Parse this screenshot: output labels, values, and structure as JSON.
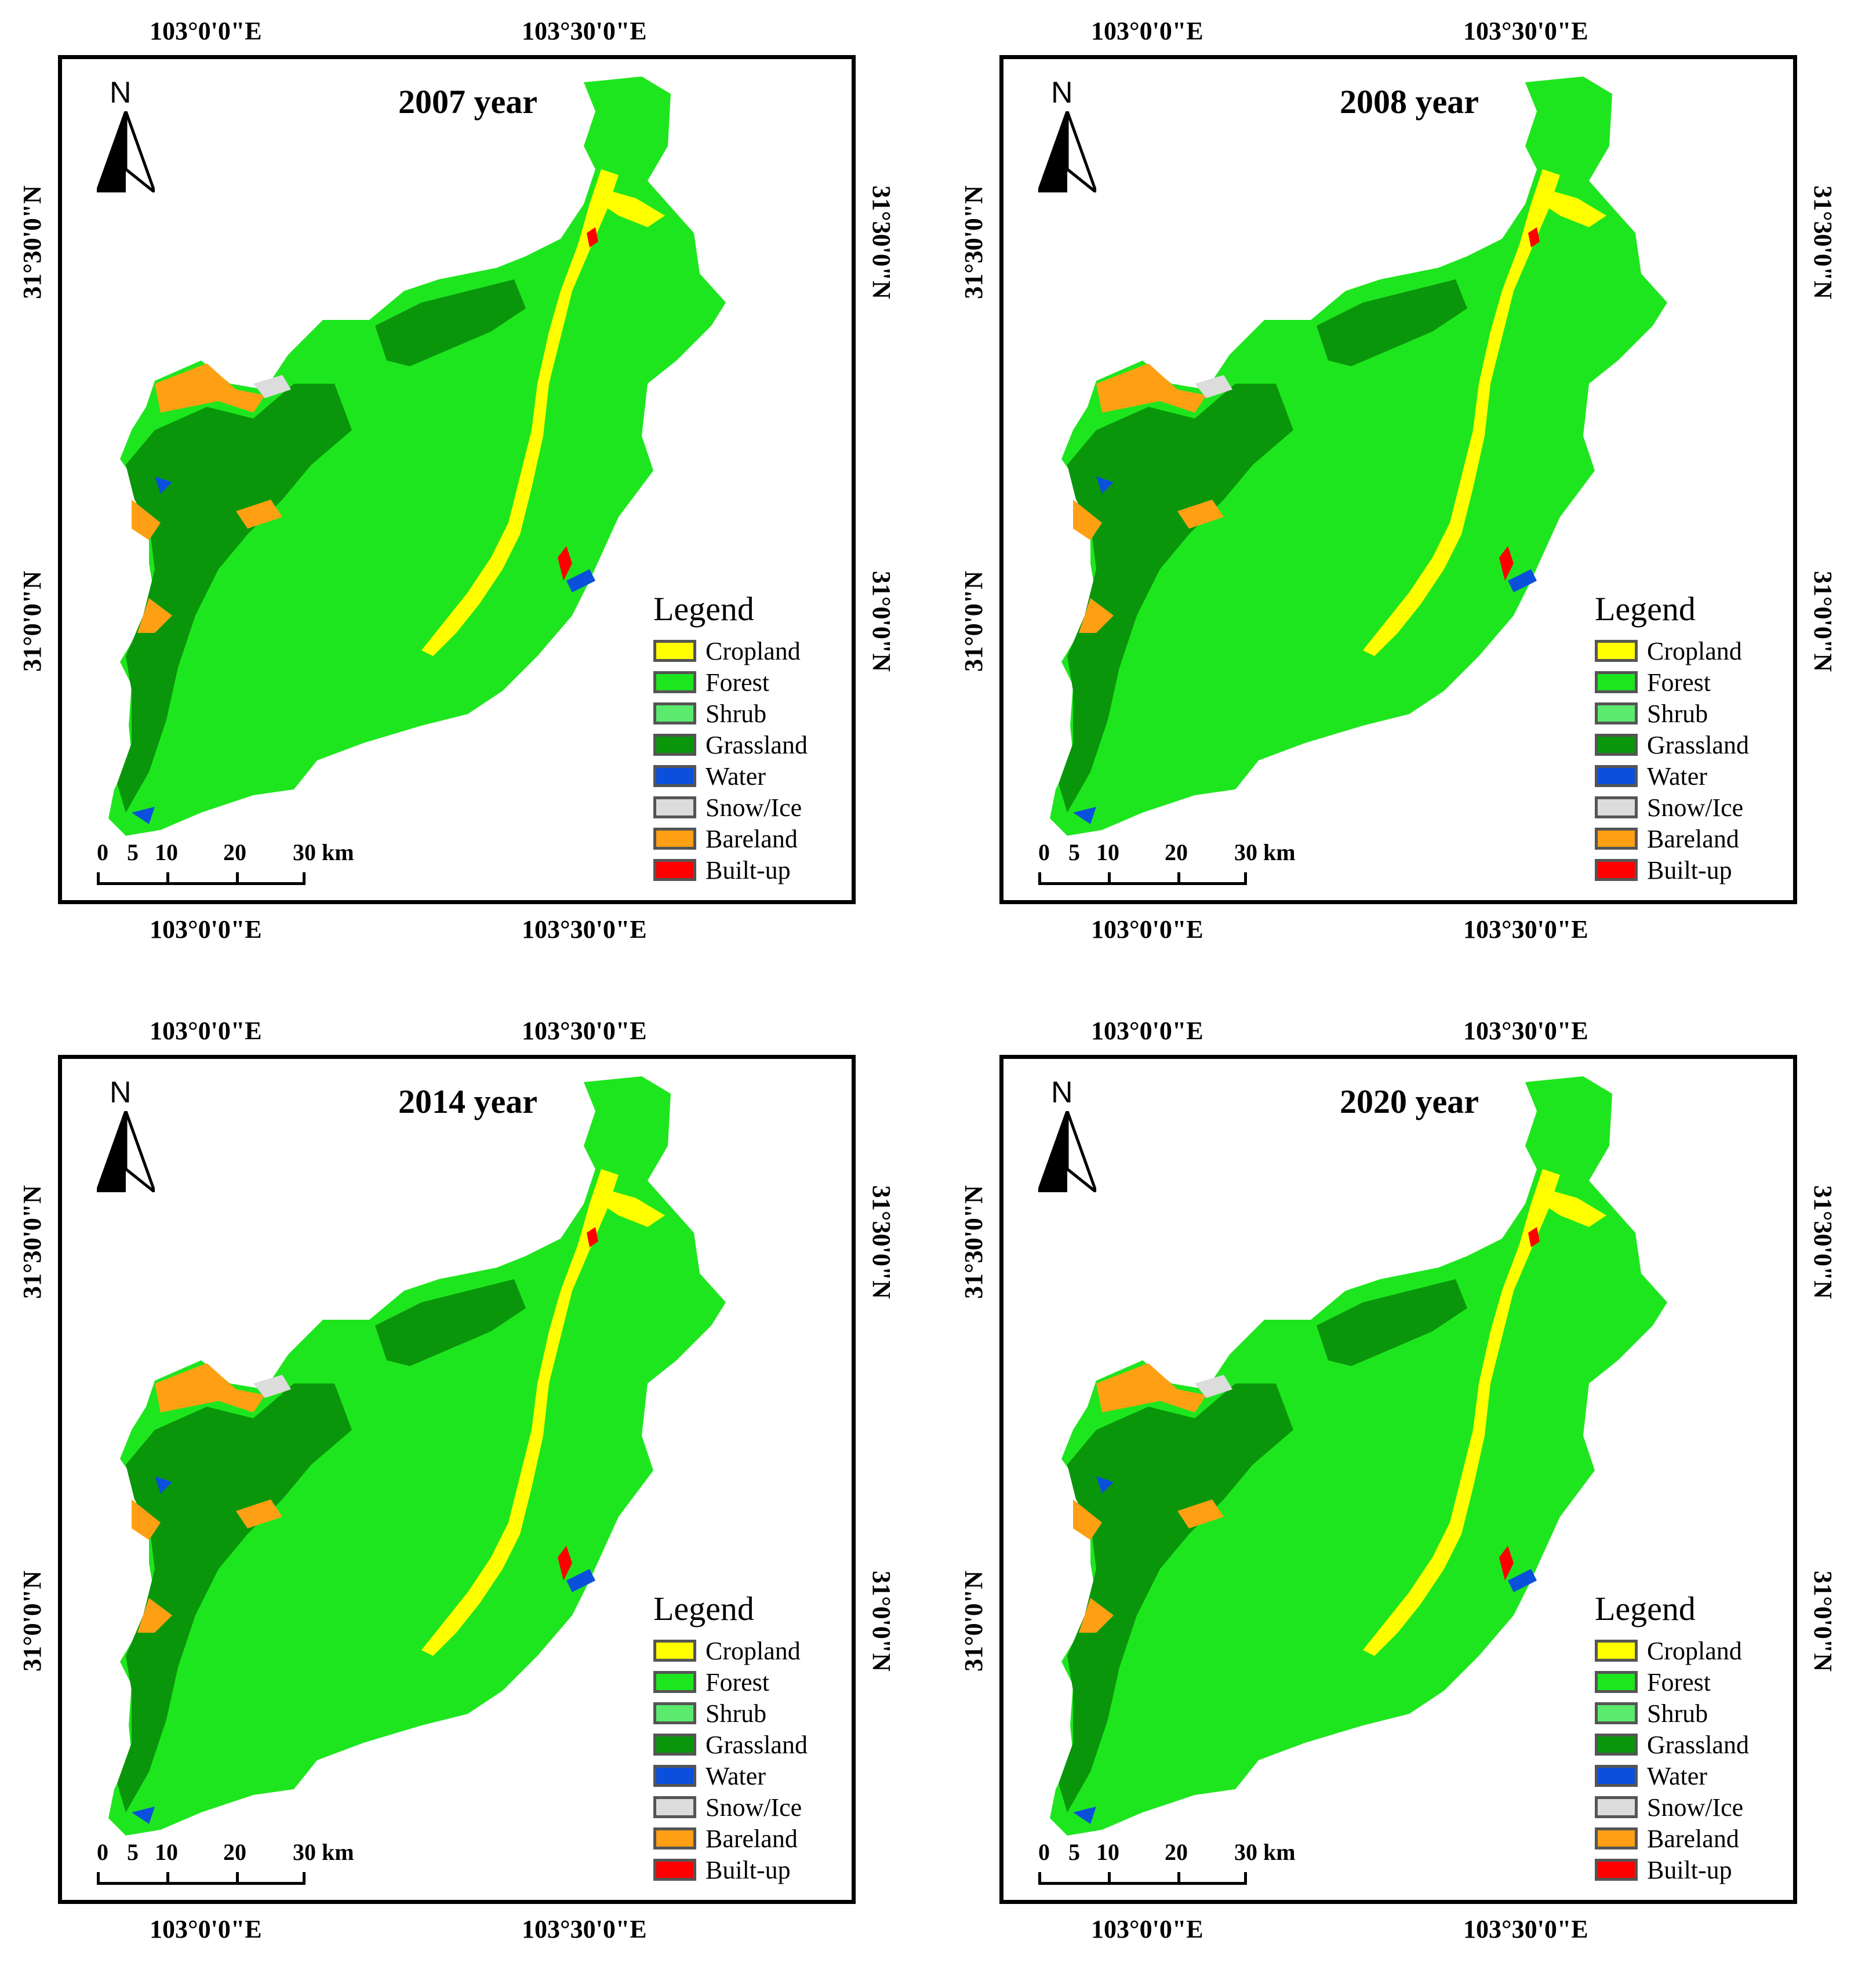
{
  "panels": [
    {
      "title": "2007 year"
    },
    {
      "title": "2008 year"
    },
    {
      "title": "2014 year"
    },
    {
      "title": "2020 year"
    }
  ],
  "ticks": {
    "lon_left": "103°0'0\"E",
    "lon_right": "103°30'0\"E",
    "lat_top": "31°30'0\"N",
    "lat_bottom": "31°0'0\"N"
  },
  "north_label": "N",
  "legend": {
    "title": "Legend",
    "items": [
      {
        "label": "Cropland",
        "color": "#ffff00"
      },
      {
        "label": "Forest",
        "color": "#1ee61e"
      },
      {
        "label": "Shrub",
        "color": "#5aeb6e"
      },
      {
        "label": "Grassland",
        "color": "#0a960a"
      },
      {
        "label": "Water",
        "color": "#0a50dc"
      },
      {
        "label": "Snow/Ice",
        "color": "#dcdcdc"
      },
      {
        "label": "Bareland",
        "color": "#ffa014"
      },
      {
        "label": "Built-up",
        "color": "#ff0000"
      }
    ]
  },
  "scalebar": {
    "labels": [
      "0",
      "5",
      "10",
      "20",
      "30 km"
    ]
  }
}
